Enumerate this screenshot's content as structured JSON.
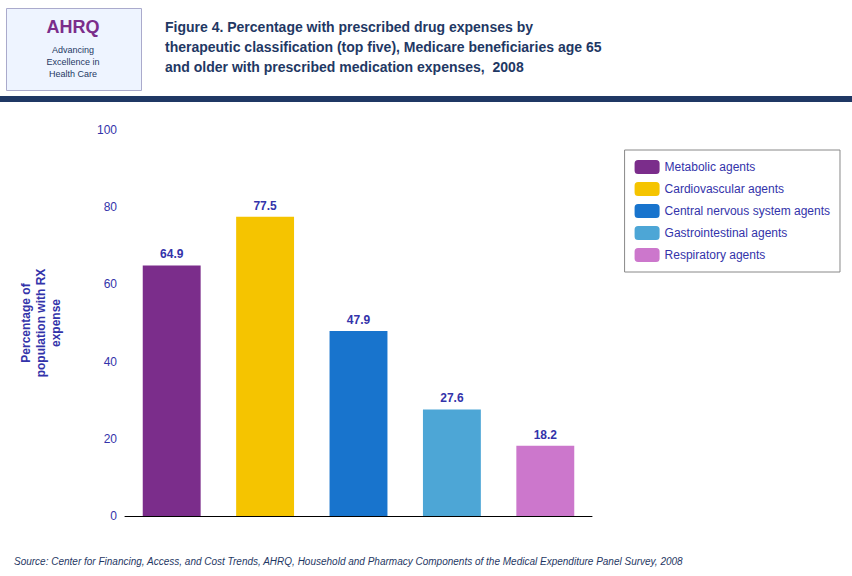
{
  "chart_data": {
    "type": "bar",
    "title": "Figure 4. Percentage with prescribed drug expenses by\ntherapeutic classification (top five), Medicare beneficiaries age 65\nand older with prescribed medication expenses,  2008",
    "categories": [
      "Metabolic agents",
      "Cardiovascular agents",
      "Central nervous system agents",
      "Gastrointestinal agents",
      "Respiratory agents"
    ],
    "values": [
      64.9,
      77.5,
      47.9,
      27.6,
      18.2
    ],
    "colors": [
      "#7B2D8B",
      "#F5C400",
      "#1874CD",
      "#4DA6D6",
      "#CC77CC"
    ],
    "ylabel": "Percentage of\npopulation with RX\nexpense",
    "ylim": [
      0,
      100
    ],
    "yticks": [
      0,
      20,
      40,
      60,
      80,
      100
    ],
    "grid": false,
    "legend": "right",
    "data_labels": true,
    "tick_labels": "y",
    "annotations": [
      "Source: Center for Financing, Access, and Cost Trends, AHRQ, Household and Pharmacy Components of the Medical Expenditure Panel Survey, 2008",
      "AHRQ",
      "Advancing\nExcellence in\nHealth Care"
    ]
  }
}
